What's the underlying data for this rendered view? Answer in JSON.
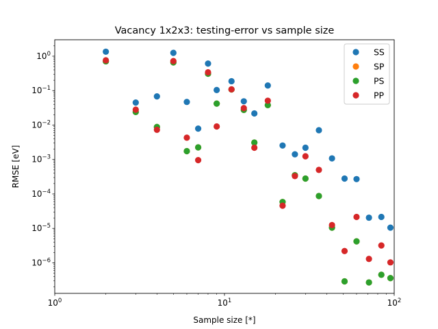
{
  "chart_data": {
    "type": "scatter",
    "title": "Vacancy 1x2x3: testing-error vs sample size",
    "xlabel": "Sample size [*]",
    "ylabel": "RMSE [eV]",
    "xscale": "log",
    "yscale": "log",
    "xlim": [
      1,
      100
    ],
    "ylim": [
      1.3e-07,
      3.0
    ],
    "grid": false,
    "legend_position": "top-right",
    "x_ticks": [
      {
        "value": 1,
        "mant": "10",
        "exp": "0"
      },
      {
        "value": 10,
        "mant": "10",
        "exp": "1"
      },
      {
        "value": 100,
        "mant": "10",
        "exp": "2"
      }
    ],
    "y_ticks": [
      {
        "value": 1e-06,
        "mant": "10",
        "exp": "−6"
      },
      {
        "value": 1e-05,
        "mant": "10",
        "exp": "−5"
      },
      {
        "value": 0.0001,
        "mant": "10",
        "exp": "−4"
      },
      {
        "value": 0.001,
        "mant": "10",
        "exp": "−3"
      },
      {
        "value": 0.01,
        "mant": "10",
        "exp": "−2"
      },
      {
        "value": 0.1,
        "mant": "10",
        "exp": "−1"
      },
      {
        "value": 1,
        "mant": "10",
        "exp": "0"
      }
    ],
    "series": [
      {
        "name": "SS",
        "color": "#1f77b4",
        "x": [
          2,
          3,
          4,
          5,
          6,
          7,
          8,
          9,
          11,
          13,
          15,
          18,
          22,
          26,
          30,
          36,
          43,
          51,
          60,
          71,
          84,
          95
        ],
        "y": [
          1.35,
          0.045,
          0.068,
          1.25,
          0.047,
          0.0079,
          0.61,
          0.104,
          0.188,
          0.049,
          0.0218,
          0.141,
          0.00255,
          0.00142,
          0.0022,
          0.0071,
          0.00108,
          0.00028,
          0.00027,
          2.05e-05,
          2.15e-05,
          1.05e-05
        ]
      },
      {
        "name": "SP",
        "color": "#ff7f0e",
        "x": [
          2,
          3,
          4,
          5,
          6,
          7,
          8,
          9,
          11,
          13,
          15,
          18,
          22,
          26,
          30,
          36,
          43,
          51,
          60,
          71,
          84,
          95
        ],
        "y": [
          0.71,
          0.024,
          0.0088,
          0.66,
          0.00175,
          0.00225,
          0.31,
          0.042,
          0.108,
          0.0275,
          0.0031,
          0.038,
          5.85e-05,
          0.00035,
          0.00028,
          8.7e-05,
          1.05e-05,
          2.9e-07,
          4.2e-06,
          2.7e-07,
          4.5e-07,
          3.6e-07
        ]
      },
      {
        "name": "PS",
        "color": "#2ca02c",
        "x": [
          2,
          3,
          4,
          5,
          6,
          7,
          8,
          9,
          11,
          13,
          15,
          18,
          22,
          26,
          30,
          36,
          43,
          51,
          60,
          71,
          84,
          95
        ],
        "y": [
          0.71,
          0.024,
          0.0088,
          0.66,
          0.00175,
          0.00225,
          0.31,
          0.042,
          0.108,
          0.0275,
          0.0031,
          0.038,
          5.85e-05,
          0.00035,
          0.00028,
          8.7e-05,
          1.05e-05,
          2.9e-07,
          4.2e-06,
          2.7e-07,
          4.5e-07,
          3.6e-07
        ]
      },
      {
        "name": "PP",
        "color": "#d62728",
        "x": [
          2,
          3,
          4,
          5,
          6,
          7,
          8,
          9,
          11,
          13,
          15,
          18,
          22,
          26,
          30,
          36,
          43,
          51,
          60,
          71,
          84,
          95
        ],
        "y": [
          0.76,
          0.028,
          0.0073,
          0.72,
          0.0043,
          0.00096,
          0.34,
          0.0091,
          0.109,
          0.031,
          0.0022,
          0.051,
          4.55e-05,
          0.00033,
          0.00124,
          0.0005,
          1.25e-05,
          2.2e-06,
          2.15e-05,
          1.3e-06,
          3.2e-06,
          1.03e-06
        ]
      }
    ]
  }
}
